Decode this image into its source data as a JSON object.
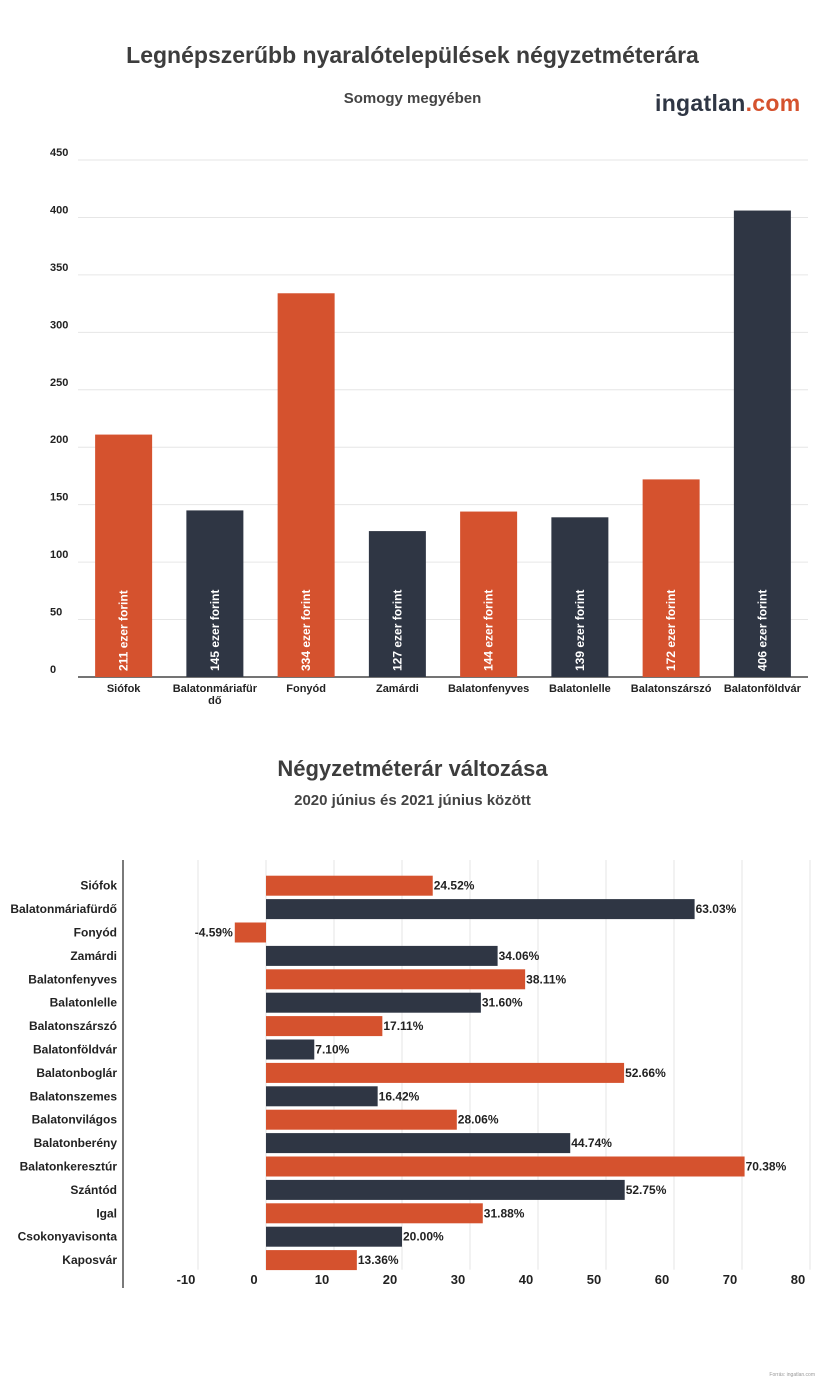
{
  "chart1": {
    "title": "Legnépszerűbb nyaralótelepülések négyzetméterára",
    "subtitle": "Somogy megyében"
  },
  "logo": {
    "part1": "ingatlan",
    "part2": ".com"
  },
  "chart2": {
    "title": "Négyzetméterár változása",
    "subtitle": "2020 június és 2021 június között"
  },
  "source": "Forrás: ingatlan.com",
  "colors": {
    "orange": "#d5522e",
    "navy": "#2f3644"
  },
  "chart_data": [
    {
      "type": "bar",
      "orientation": "vertical",
      "title": "Legnépszerűbb nyaralótelepülések négyzetméterára",
      "subtitle": "Somogy megyében",
      "categories": [
        "Siófok",
        "Balatonmáriafürdő",
        "Fonyód",
        "Zamárdi",
        "Balatonfenyves",
        "Balatonlelle",
        "Balatonszárszó",
        "Balatonföldvár"
      ],
      "values": [
        211,
        145,
        334,
        127,
        144,
        139,
        172,
        406
      ],
      "data_labels": [
        "211 ezer forint",
        "145 ezer forint",
        "334 ezer forint",
        "127 ezer forint",
        "144 ezer forint",
        "139 ezer forint",
        "172 ezer forint",
        "406 ezer forint"
      ],
      "bar_colors": [
        "orange",
        "navy",
        "orange",
        "navy",
        "orange",
        "navy",
        "orange",
        "navy"
      ],
      "ylim": [
        0,
        450
      ],
      "yticks": [
        0,
        50,
        100,
        150,
        200,
        250,
        300,
        350,
        400,
        450
      ],
      "grid": true,
      "legend": "none"
    },
    {
      "type": "bar",
      "orientation": "horizontal",
      "title": "Négyzetméterár változása",
      "subtitle": "2020 június és 2021 június között",
      "categories": [
        "Siófok",
        "Balatonmáriafürdő",
        "Fonyód",
        "Zamárdi",
        "Balatonfenyves",
        "Balatonlelle",
        "Balatonszárszó",
        "Balatonföldvár",
        "Balatonboglár",
        "Balatonszemes",
        "Balatonvilágos",
        "Balatonberény",
        "Balatonkeresztúr",
        "Szántód",
        "Igal",
        "Csokonyavisonta",
        "Kaposvár"
      ],
      "values": [
        24.52,
        63.03,
        -4.59,
        34.06,
        38.11,
        31.6,
        17.11,
        7.1,
        52.66,
        16.42,
        28.06,
        44.74,
        70.38,
        52.75,
        31.88,
        20.0,
        13.36
      ],
      "data_labels": [
        "24.52%",
        "63.03%",
        "-4.59%",
        "34.06%",
        "38.11%",
        "31.60%",
        "17.11%",
        "7.10%",
        "52.66%",
        "16.42%",
        "28.06%",
        "44.74%",
        "70.38%",
        "52.75%",
        "31.88%",
        "20.00%",
        "13.36%"
      ],
      "bar_colors": [
        "orange",
        "navy",
        "orange",
        "navy",
        "orange",
        "navy",
        "orange",
        "navy",
        "orange",
        "navy",
        "orange",
        "navy",
        "orange",
        "navy",
        "orange",
        "navy",
        "orange"
      ],
      "xlim": [
        -10,
        80
      ],
      "xticks": [
        -10,
        0,
        10,
        20,
        30,
        40,
        50,
        60,
        70,
        80
      ],
      "grid": true,
      "legend": "none"
    }
  ]
}
